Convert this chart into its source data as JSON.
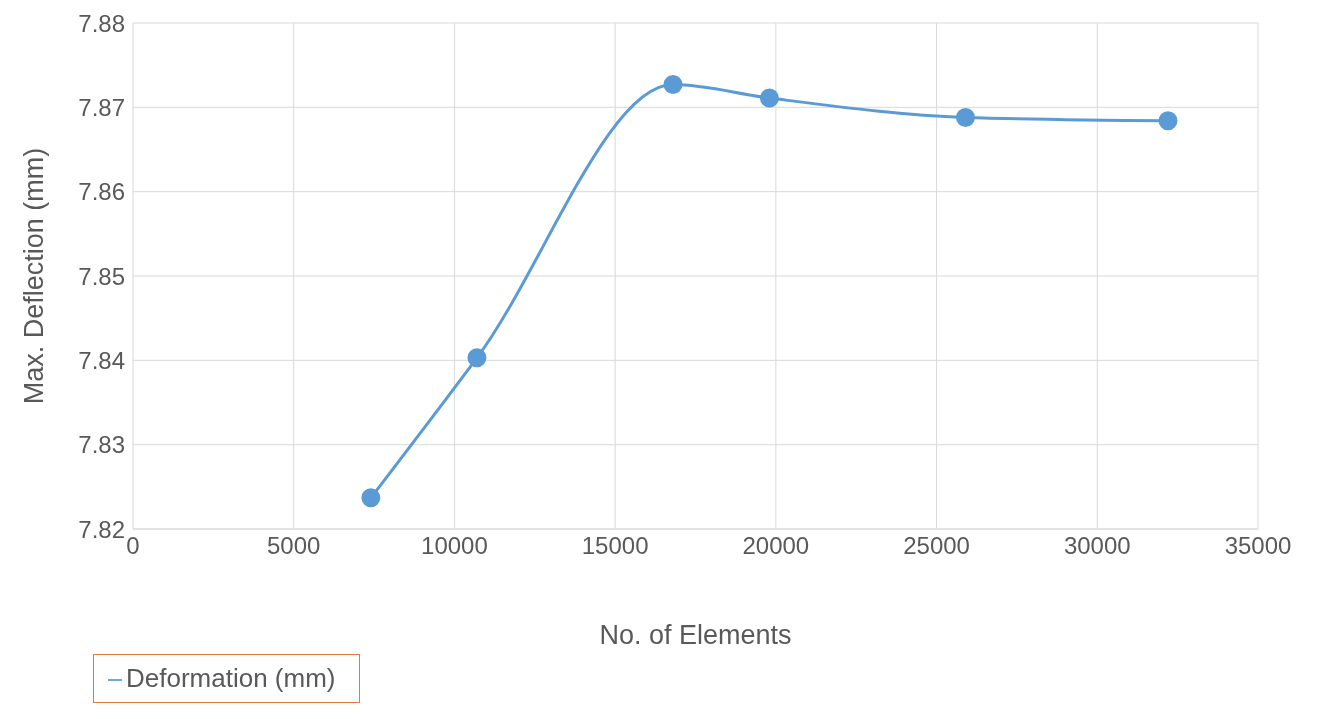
{
  "chart_data": {
    "type": "line",
    "xlabel": "No. of Elements",
    "ylabel": "Max. Deflection (mm)",
    "x": [
      7400,
      10700,
      16800,
      19800,
      25900,
      32200
    ],
    "series": [
      {
        "name": "Deformation (mm)",
        "color": "#5b9bd5",
        "values": [
          7.8237,
          7.8403,
          7.8727,
          7.8711,
          7.8688,
          7.8684
        ]
      }
    ],
    "xlim": [
      0,
      35000
    ],
    "xticks": [
      0,
      5000,
      10000,
      15000,
      20000,
      25000,
      30000,
      35000
    ],
    "ylim": [
      7.82,
      7.88
    ],
    "yticks": [
      7.82,
      7.83,
      7.84,
      7.85,
      7.86,
      7.87,
      7.88
    ],
    "grid": true,
    "legend": "bottom left",
    "marker": "circle",
    "line_style": "solid"
  }
}
